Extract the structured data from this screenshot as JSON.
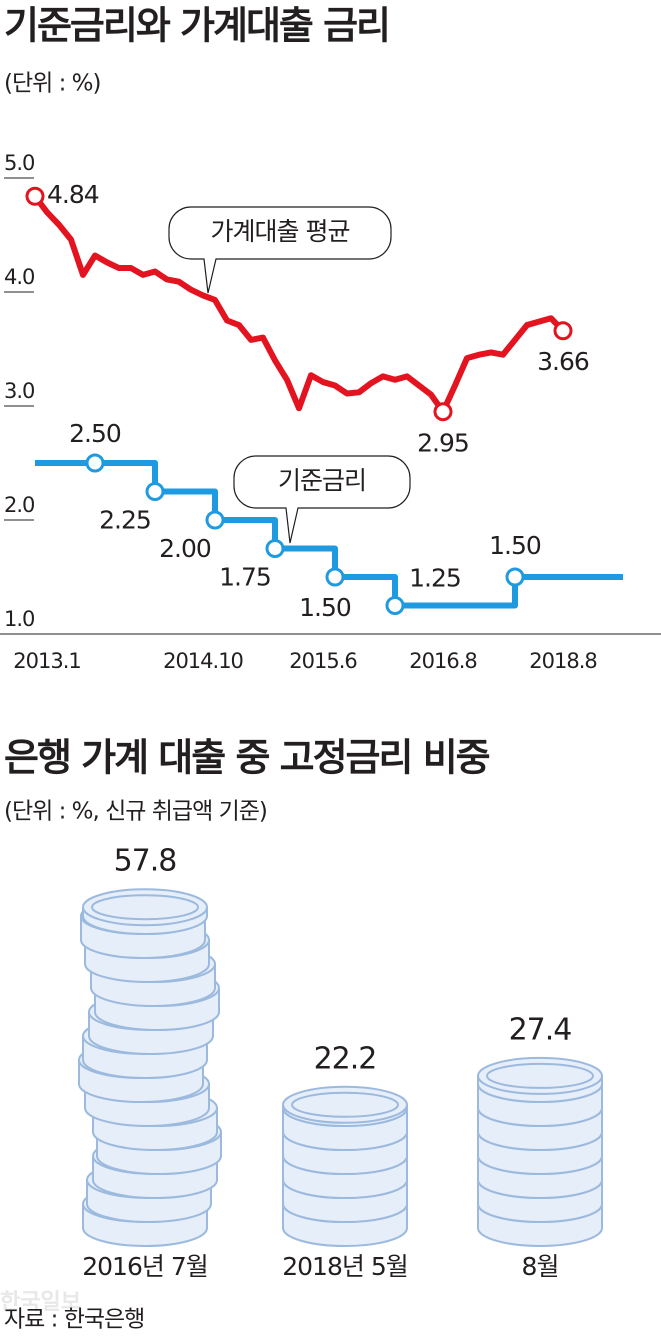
{
  "chart_data": [
    {
      "type": "line",
      "title": "기준금리와 가계대출 금리",
      "subtitle": "(단위 : %)",
      "categories": [
        null,
        "2013.1",
        null,
        null,
        null,
        null,
        null,
        null,
        null,
        null,
        null,
        null,
        null,
        null,
        "2014.10",
        null,
        null,
        null,
        null,
        null,
        null,
        null,
        null,
        null,
        "2015.6",
        null,
        null,
        null,
        null,
        null,
        null,
        null,
        null,
        null,
        "2016.8",
        null,
        null,
        null,
        null,
        null,
        null,
        null,
        null,
        null,
        "2018.8",
        null,
        null,
        null,
        null,
        null
      ],
      "ylim": [
        1,
        5
      ],
      "yticks": [
        {
          "value": 1,
          "label": "1.0"
        },
        {
          "value": 2,
          "label": "2.0"
        },
        {
          "value": 3,
          "label": "3.0"
        },
        {
          "value": 4,
          "label": "4.0"
        },
        {
          "value": 5,
          "label": "5.0"
        }
      ],
      "series": [
        {
          "name": "가계대출 평균",
          "color": "#e3141f",
          "step": false,
          "values": [
            4.84,
            4.7,
            4.59,
            4.46,
            4.15,
            4.32,
            4.26,
            4.21,
            4.21,
            4.15,
            4.18,
            4.11,
            4.09,
            4.02,
            3.97,
            3.93,
            3.75,
            3.71,
            3.58,
            3.6,
            3.4,
            3.23,
            2.98,
            3.27,
            3.21,
            3.18,
            3.11,
            3.12,
            3.2,
            3.26,
            3.23,
            3.26,
            3.18,
            3.1,
            2.95,
            3.18,
            3.42,
            3.45,
            3.47,
            3.45,
            3.58,
            3.71,
            3.74,
            3.77,
            3.66,
            null,
            null,
            null,
            null,
            null
          ],
          "value_labels": [
            "4.84",
            null,
            null,
            null,
            null,
            null,
            null,
            null,
            null,
            null,
            null,
            null,
            null,
            null,
            null,
            null,
            null,
            null,
            null,
            null,
            null,
            null,
            null,
            null,
            null,
            null,
            null,
            null,
            null,
            null,
            null,
            null,
            null,
            null,
            "2.95",
            null,
            null,
            null,
            null,
            null,
            null,
            null,
            null,
            null,
            "3.66",
            null,
            null,
            null,
            null,
            null
          ]
        },
        {
          "name": "기준금리",
          "color": "#1e9be0",
          "step": true,
          "values": [
            2.5,
            2.5,
            2.5,
            2.5,
            2.5,
            2.5,
            2.5,
            2.5,
            2.5,
            2.5,
            2.25,
            2.25,
            2.25,
            2.25,
            2.25,
            2.0,
            2.0,
            2.0,
            2.0,
            2.0,
            1.75,
            1.75,
            1.75,
            1.75,
            1.75,
            1.5,
            1.5,
            1.5,
            1.5,
            1.5,
            1.25,
            1.25,
            1.25,
            1.25,
            1.25,
            1.25,
            1.25,
            1.25,
            1.25,
            1.25,
            1.5,
            1.5,
            1.5,
            1.5,
            1.5,
            1.5,
            1.5,
            1.5,
            1.5,
            1.5
          ],
          "value_labels": [
            null,
            null,
            null,
            null,
            null,
            "2.50",
            null,
            null,
            null,
            null,
            "2.25",
            null,
            null,
            null,
            null,
            "2.00",
            null,
            null,
            null,
            null,
            "1.75",
            null,
            null,
            null,
            null,
            "1.50",
            null,
            null,
            null,
            null,
            "1.25",
            null,
            null,
            null,
            null,
            null,
            null,
            null,
            null,
            null,
            "1.50",
            null,
            null,
            null,
            null,
            null,
            null,
            null,
            null,
            null
          ]
        }
      ]
    },
    {
      "type": "coin-stack",
      "title": "은행 가계 대출 중 고정금리 비중",
      "subtitle": "(단위 : %, 신규 취급액 기준)",
      "categories": [
        "2016년 7월",
        "2018년 5월",
        "8월"
      ],
      "values": [
        57.8,
        22.2,
        27.4
      ],
      "color": "#e6eef9",
      "stroke": "#9cb9de"
    }
  ],
  "source": "자료 : 한국은행",
  "watermark": "한국일보"
}
